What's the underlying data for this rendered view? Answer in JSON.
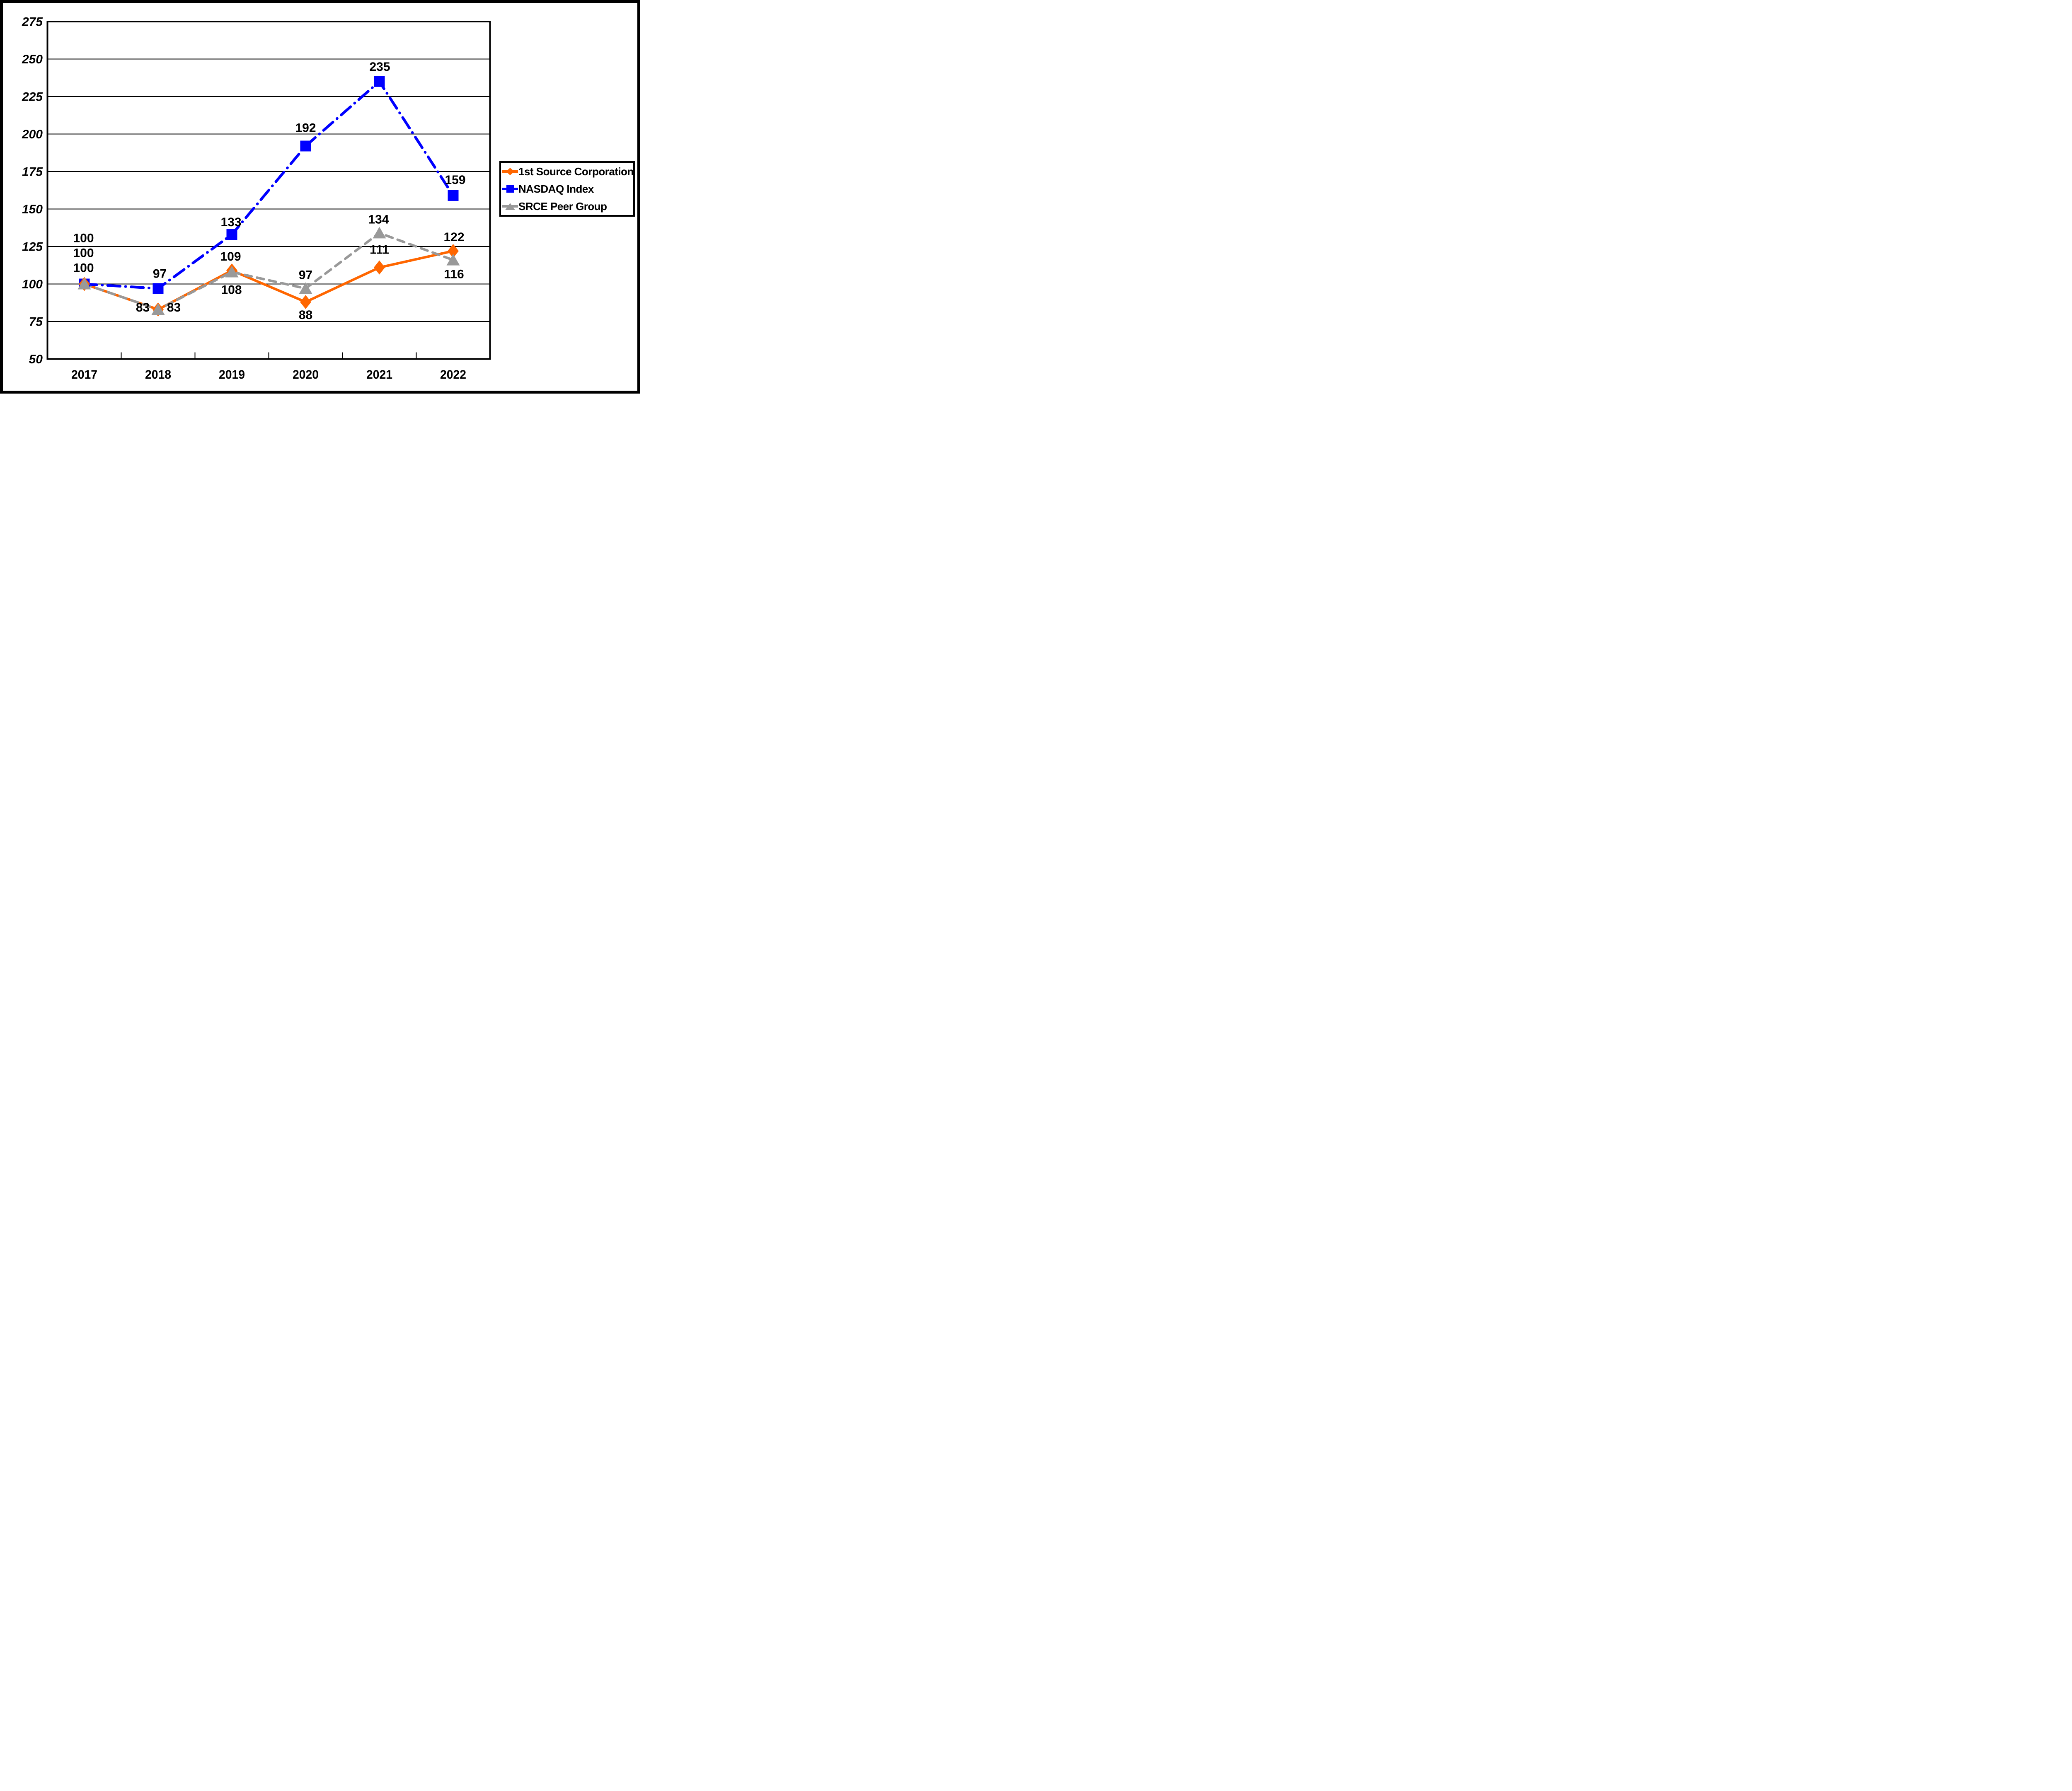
{
  "frame": {
    "background": "#FFFFFF",
    "border_color": "#000000"
  },
  "chart_data": {
    "type": "line",
    "title": "",
    "categories": [
      "2017",
      "2018",
      "2019",
      "2020",
      "2021",
      "2022"
    ],
    "series": [
      {
        "name": "1st Source Corporation",
        "color": "#FF6600",
        "marker": "diamond",
        "line_style": "solid",
        "values": [
          100,
          83,
          109,
          88,
          111,
          122
        ]
      },
      {
        "name": "NASDAQ Index",
        "color": "#0000FF",
        "marker": "square",
        "line_style": "dash-dot",
        "values": [
          100,
          97,
          133,
          192,
          235,
          159
        ]
      },
      {
        "name": "SRCE Peer Group",
        "color": "#999999",
        "marker": "triangle",
        "line_style": "dashed",
        "values": [
          100,
          83,
          108,
          97,
          134,
          116
        ]
      }
    ],
    "xlabel": "",
    "ylabel": "",
    "ylim": [
      50,
      275
    ],
    "ytick_step": 25,
    "y_ticks": [
      "275",
      "250",
      "225",
      "200",
      "175",
      "150",
      "125",
      "100",
      "75",
      "50"
    ],
    "grid": true,
    "grid_color": "#000000",
    "legend_position": "right-middle",
    "data_labels": true
  }
}
